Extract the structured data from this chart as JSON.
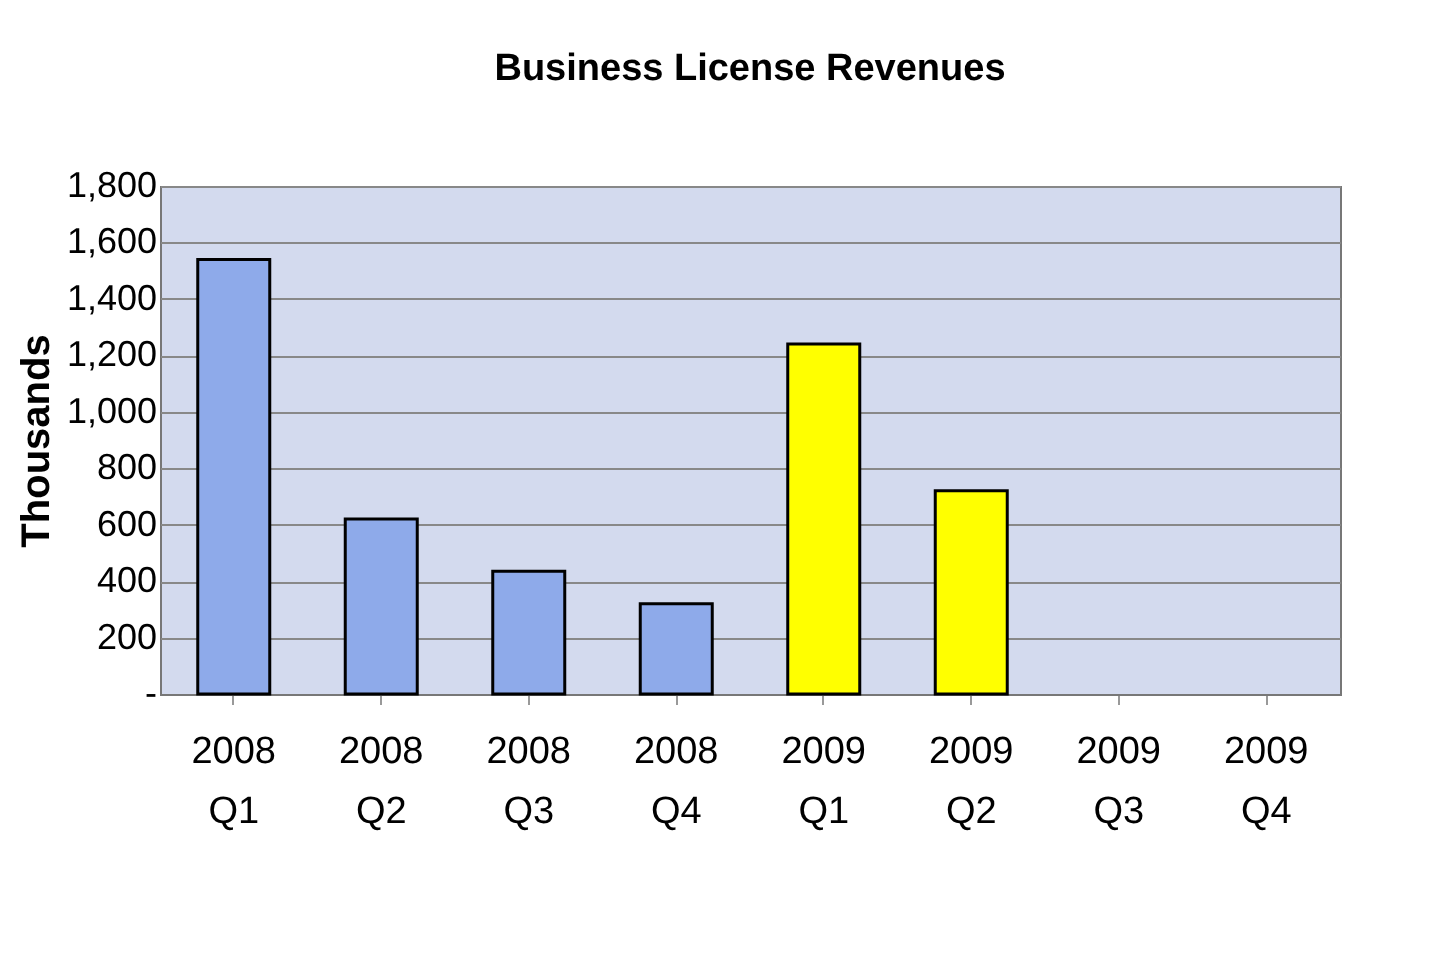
{
  "chart_data": {
    "type": "bar",
    "title": "Business License Revenues",
    "ylabel": "Thousands",
    "categories": [
      "2008 Q1",
      "2008 Q2",
      "2008 Q3",
      "2008 Q4",
      "2009 Q1",
      "2009 Q2",
      "2009 Q3",
      "2009 Q4"
    ],
    "values": [
      1540,
      620,
      435,
      320,
      1240,
      720,
      null,
      null
    ],
    "colors": [
      "#8eaaea",
      "#8eaaea",
      "#8eaaea",
      "#8eaaea",
      "#ffff00",
      "#ffff00",
      "#ffff00",
      "#ffff00"
    ],
    "ylim": [
      0,
      1800
    ],
    "yticks": [
      {
        "value": 0,
        "label": "-"
      },
      {
        "value": 200,
        "label": "200"
      },
      {
        "value": 400,
        "label": "400"
      },
      {
        "value": 600,
        "label": "600"
      },
      {
        "value": 800,
        "label": "800"
      },
      {
        "value": 1000,
        "label": "1,000"
      },
      {
        "value": 1200,
        "label": "1,200"
      },
      {
        "value": 1400,
        "label": "1,400"
      },
      {
        "value": 1600,
        "label": "1,600"
      },
      {
        "value": 1800,
        "label": "1,800"
      }
    ],
    "grid": "y"
  }
}
